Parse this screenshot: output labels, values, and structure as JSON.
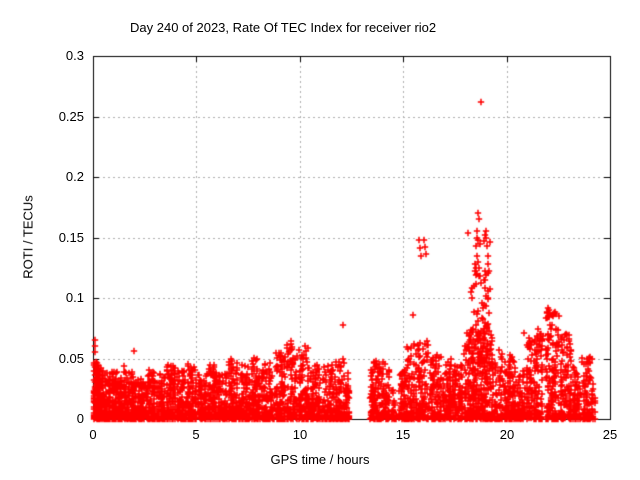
{
  "chart_data": {
    "type": "scatter",
    "title": "Day 240 of 2023, Rate Of TEC Index for receiver rio2",
    "xlabel": "GPS time / hours",
    "ylabel": "ROTI / TECUs",
    "xlim": [
      0,
      25
    ],
    "ylim": [
      0,
      0.3
    ],
    "xticks": [
      0,
      5,
      10,
      15,
      20,
      25
    ],
    "yticks": [
      0,
      0.05,
      0.1,
      0.15,
      0.2,
      0.25,
      0.3
    ],
    "xtick_labels": [
      "0",
      "5",
      "10",
      "15",
      "20",
      "25"
    ],
    "ytick_labels": [
      "0",
      "0.05",
      "0.1",
      "0.15",
      "0.2",
      "0.25",
      "0.3"
    ],
    "grid": true,
    "grid_style": "dotted",
    "legend": "none",
    "marker": "plus",
    "colors": {
      "marker": "#ff0000",
      "grid": "#b0b0b0",
      "axis": "#000000",
      "background": "#ffffff"
    },
    "seed": 20230240,
    "outlier_points": [
      [
        0.08,
        0.065
      ],
      [
        0.1,
        0.06
      ],
      [
        0.12,
        0.055
      ],
      [
        2.0,
        0.056
      ],
      [
        12.08,
        0.078
      ],
      [
        15.46,
        0.086
      ],
      [
        15.78,
        0.148
      ],
      [
        15.8,
        0.141
      ],
      [
        15.84,
        0.135
      ],
      [
        16.02,
        0.148
      ],
      [
        16.06,
        0.142
      ],
      [
        16.1,
        0.136
      ],
      [
        18.14,
        0.154
      ],
      [
        18.3,
        0.105
      ],
      [
        18.35,
        0.1
      ],
      [
        18.4,
        0.11
      ],
      [
        18.45,
        0.128
      ],
      [
        18.48,
        0.122
      ],
      [
        18.52,
        0.143
      ],
      [
        18.55,
        0.15
      ],
      [
        18.58,
        0.155
      ],
      [
        18.6,
        0.148
      ],
      [
        18.62,
        0.17
      ],
      [
        18.68,
        0.165
      ],
      [
        18.55,
        0.135
      ],
      [
        18.6,
        0.13
      ],
      [
        18.65,
        0.125
      ],
      [
        18.7,
        0.145
      ],
      [
        18.7,
        0.118
      ],
      [
        18.75,
        0.112
      ],
      [
        18.75,
        0.262
      ],
      [
        18.9,
        0.147
      ],
      [
        18.95,
        0.152
      ],
      [
        19.0,
        0.155
      ],
      [
        19.0,
        0.15
      ],
      [
        19.05,
        0.143
      ],
      [
        19.1,
        0.135
      ],
      [
        19.1,
        0.128
      ],
      [
        19.15,
        0.122
      ],
      [
        19.2,
        0.146
      ],
      [
        18.9,
        0.115
      ],
      [
        18.95,
        0.108
      ],
      [
        19.1,
        0.1
      ],
      [
        20.85,
        0.071
      ],
      [
        21.5,
        0.067
      ],
      [
        22.0,
        0.092
      ],
      [
        22.05,
        0.09
      ],
      [
        22.1,
        0.088
      ],
      [
        23.9,
        0.05
      ],
      [
        23.92,
        0.047
      ],
      [
        24.15,
        0.05
      ]
    ],
    "clusters": [
      [
        0.02,
        0.3,
        140,
        0,
        0.048,
        2.2
      ],
      [
        0.3,
        0.55,
        90,
        0,
        0.045,
        2.2
      ],
      [
        0.55,
        0.85,
        90,
        0,
        0.038,
        2.2
      ],
      [
        0.9,
        1.15,
        90,
        0,
        0.042,
        2.2
      ],
      [
        1.2,
        1.45,
        80,
        0,
        0.035,
        2.2
      ],
      [
        1.5,
        1.75,
        80,
        0,
        0.046,
        2.2
      ],
      [
        1.8,
        2.1,
        90,
        0,
        0.04,
        2.2
      ],
      [
        2.15,
        2.5,
        90,
        0,
        0.035,
        2.2
      ],
      [
        2.55,
        3.0,
        100,
        0,
        0.042,
        2.2
      ],
      [
        3.05,
        3.5,
        100,
        0,
        0.038,
        2.2
      ],
      [
        3.55,
        4.0,
        100,
        0,
        0.045,
        2.2
      ],
      [
        4.05,
        4.5,
        100,
        0,
        0.04,
        2.2
      ],
      [
        4.55,
        5.0,
        100,
        0,
        0.047,
        2.2
      ],
      [
        5.05,
        5.5,
        100,
        0,
        0.04,
        2.2
      ],
      [
        5.55,
        6.0,
        100,
        0,
        0.045,
        2.2
      ],
      [
        6.05,
        6.5,
        90,
        0,
        0.038,
        2.2
      ],
      [
        6.55,
        7.0,
        100,
        0,
        0.05,
        2.2
      ],
      [
        7.05,
        7.6,
        110,
        0,
        0.045,
        2.2
      ],
      [
        7.65,
        8.1,
        100,
        0,
        0.052,
        2.2
      ],
      [
        8.15,
        8.7,
        110,
        0,
        0.048,
        2.2
      ],
      [
        8.75,
        9.3,
        110,
        0,
        0.055,
        2.2
      ],
      [
        9.35,
        9.9,
        110,
        0,
        0.065,
        2.2
      ],
      [
        9.95,
        10.45,
        110,
        0,
        0.06,
        2.2
      ],
      [
        10.5,
        11.0,
        110,
        0,
        0.05,
        2.2
      ],
      [
        11.05,
        11.6,
        100,
        0,
        0.045,
        2.2
      ],
      [
        11.65,
        12.15,
        100,
        0,
        0.05,
        2.2
      ],
      [
        12.15,
        12.4,
        60,
        0,
        0.04,
        2.2
      ],
      [
        13.4,
        13.75,
        80,
        0,
        0.05,
        2.2
      ],
      [
        13.75,
        14.35,
        110,
        0,
        0.048,
        2.2
      ],
      [
        14.45,
        14.65,
        30,
        0,
        0.025,
        2.2
      ],
      [
        14.8,
        15.15,
        70,
        0,
        0.042,
        2.2
      ],
      [
        15.15,
        15.55,
        80,
        0,
        0.062,
        2.2
      ],
      [
        15.6,
        16.25,
        110,
        0,
        0.065,
        2.2
      ],
      [
        16.3,
        16.85,
        100,
        0,
        0.055,
        2.2
      ],
      [
        16.9,
        17.35,
        90,
        0,
        0.05,
        2.2
      ],
      [
        17.4,
        17.85,
        90,
        0,
        0.045,
        2.2
      ],
      [
        17.95,
        19.35,
        380,
        0,
        0.075,
        1.9
      ],
      [
        18.3,
        19.2,
        60,
        0.045,
        0.13,
        1.3
      ],
      [
        19.4,
        20.0,
        110,
        0,
        0.06,
        2.2
      ],
      [
        20.0,
        20.45,
        90,
        0,
        0.055,
        2.2
      ],
      [
        20.5,
        20.9,
        70,
        0,
        0.04,
        2.2
      ],
      [
        20.95,
        21.25,
        80,
        0,
        0.068,
        2.2
      ],
      [
        21.3,
        21.75,
        95,
        0,
        0.075,
        2.2
      ],
      [
        21.9,
        22.55,
        150,
        0,
        0.093,
        2.0
      ],
      [
        22.6,
        23.15,
        110,
        0,
        0.07,
        2.2
      ],
      [
        23.2,
        23.6,
        80,
        0,
        0.045,
        2.2
      ],
      [
        23.65,
        24.05,
        70,
        0,
        0.055,
        2.4
      ],
      [
        24.05,
        24.3,
        25,
        0,
        0.035,
        2.4
      ]
    ]
  }
}
